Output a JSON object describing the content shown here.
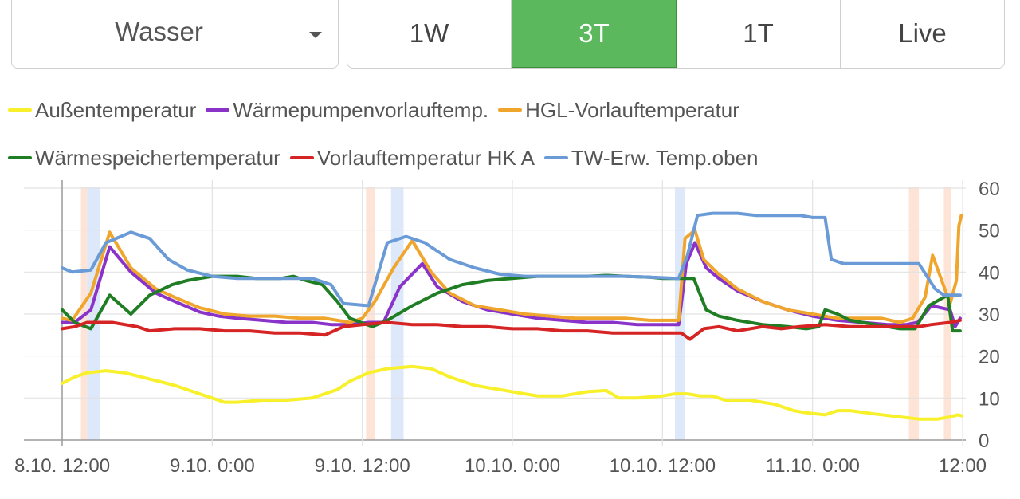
{
  "select": {
    "value": "Wasser"
  },
  "ranges": [
    {
      "label": "1W",
      "active": false
    },
    {
      "label": "3T",
      "active": true
    },
    {
      "label": "1T",
      "active": false
    },
    {
      "label": "Live",
      "active": false
    }
  ],
  "chart_data": {
    "type": "line",
    "title": "",
    "xlabel": "",
    "ylabel": "",
    "grid": true,
    "legend": "top",
    "ylim": [
      0,
      60
    ],
    "yticks": [
      "0",
      "10",
      "20",
      "30",
      "40",
      "50",
      "60"
    ],
    "xticks": [
      {
        "t": 0,
        "label": "8.10. 12:00"
      },
      {
        "t": 12,
        "label": "9.10. 0:00"
      },
      {
        "t": 24,
        "label": "9.10. 12:00"
      },
      {
        "t": 36,
        "label": "10.10. 0:00"
      },
      {
        "t": 48,
        "label": "10.10. 12:00"
      },
      {
        "t": 60,
        "label": "11.10. 0:00"
      },
      {
        "t": 72,
        "label": "12:00"
      }
    ],
    "bands": [
      {
        "from": 1.5,
        "to": 2.0,
        "color": "#fde4d6"
      },
      {
        "from": 2.0,
        "to": 3.0,
        "color": "#dde8fa"
      },
      {
        "from": 24.3,
        "to": 25.0,
        "color": "#fde4d6"
      },
      {
        "from": 26.3,
        "to": 27.3,
        "color": "#dde8fa"
      },
      {
        "from": 49.0,
        "to": 49.8,
        "color": "#dde8fa"
      },
      {
        "from": 67.7,
        "to": 68.5,
        "color": "#fde4d6"
      },
      {
        "from": 70.5,
        "to": 71.1,
        "color": "#fde4d6"
      }
    ],
    "series": [
      {
        "name": "Außentemperatur",
        "color": "#f8f02a",
        "points": [
          [
            0,
            13.5
          ],
          [
            1,
            15
          ],
          [
            2,
            16
          ],
          [
            3.5,
            16.5
          ],
          [
            5,
            16
          ],
          [
            7,
            14.5
          ],
          [
            9,
            13
          ],
          [
            11,
            11
          ],
          [
            13,
            9
          ],
          [
            14,
            9
          ],
          [
            16,
            9.5
          ],
          [
            18,
            9.5
          ],
          [
            20,
            10
          ],
          [
            22,
            12
          ],
          [
            23,
            14
          ],
          [
            24.5,
            16
          ],
          [
            26,
            17
          ],
          [
            28,
            17.5
          ],
          [
            29.5,
            17
          ],
          [
            31,
            15
          ],
          [
            33,
            13
          ],
          [
            35,
            12
          ],
          [
            37,
            11
          ],
          [
            38,
            10.5
          ],
          [
            40,
            10.5
          ],
          [
            42,
            11.5
          ],
          [
            43.5,
            11.8
          ],
          [
            44.5,
            10
          ],
          [
            46,
            10
          ],
          [
            48,
            10.5
          ],
          [
            49,
            11
          ],
          [
            50,
            11
          ],
          [
            51,
            10.5
          ],
          [
            52,
            10.5
          ],
          [
            53,
            9.5
          ],
          [
            55,
            9.5
          ],
          [
            57,
            8.5
          ],
          [
            58.5,
            7
          ],
          [
            59.5,
            6.5
          ],
          [
            61,
            6
          ],
          [
            62,
            7
          ],
          [
            63,
            7
          ],
          [
            65,
            6.2
          ],
          [
            67,
            5.5
          ],
          [
            68.5,
            5
          ],
          [
            70,
            5
          ],
          [
            71,
            5.5
          ],
          [
            71.6,
            6
          ],
          [
            71.9,
            5.8
          ]
        ]
      },
      {
        "name": "Wärmepumpenvorlauftemp.",
        "color": "#8a33c8",
        "points": [
          [
            0,
            28
          ],
          [
            1,
            28
          ],
          [
            2.3,
            31
          ],
          [
            3.8,
            46
          ],
          [
            5.5,
            40
          ],
          [
            7.5,
            35
          ],
          [
            9,
            33
          ],
          [
            11,
            30.5
          ],
          [
            12.5,
            29.5
          ],
          [
            14,
            29
          ],
          [
            16,
            28.5
          ],
          [
            18,
            28
          ],
          [
            20,
            28
          ],
          [
            21.5,
            27.5
          ],
          [
            23,
            27.5
          ],
          [
            24.5,
            28
          ],
          [
            25.7,
            28
          ],
          [
            27,
            36.5
          ],
          [
            28.8,
            42
          ],
          [
            30,
            36.5
          ],
          [
            32,
            33
          ],
          [
            34,
            31
          ],
          [
            36,
            30
          ],
          [
            38,
            29
          ],
          [
            40,
            28.5
          ],
          [
            42,
            28
          ],
          [
            44,
            28
          ],
          [
            46,
            27.5
          ],
          [
            48,
            27.5
          ],
          [
            49.3,
            27.5
          ],
          [
            49.9,
            42
          ],
          [
            50.6,
            47
          ],
          [
            51.5,
            41
          ],
          [
            52.5,
            38.5
          ],
          [
            54,
            35.5
          ],
          [
            56,
            33
          ],
          [
            58,
            31
          ],
          [
            60,
            29.5
          ],
          [
            62,
            28.5
          ],
          [
            64,
            28
          ],
          [
            66,
            27.5
          ],
          [
            67.5,
            27.5
          ],
          [
            68.4,
            28
          ],
          [
            69.5,
            32
          ],
          [
            71,
            31
          ],
          [
            71.4,
            27
          ],
          [
            71.8,
            29
          ]
        ]
      },
      {
        "name": "HGL-Vorlauftemperatur",
        "color": "#f0a52c",
        "points": [
          [
            0,
            29
          ],
          [
            0.8,
            28.5
          ],
          [
            2.3,
            35
          ],
          [
            3.8,
            49.5
          ],
          [
            5.5,
            41
          ],
          [
            7.5,
            36
          ],
          [
            9,
            34
          ],
          [
            11,
            31.5
          ],
          [
            13,
            30
          ],
          [
            15,
            29.5
          ],
          [
            17,
            29.5
          ],
          [
            19,
            29
          ],
          [
            21,
            29
          ],
          [
            22,
            28.5
          ],
          [
            23,
            28
          ],
          [
            24,
            29
          ],
          [
            25,
            33
          ],
          [
            26.5,
            41
          ],
          [
            28,
            47.5
          ],
          [
            29.5,
            40
          ],
          [
            31,
            35
          ],
          [
            33,
            32
          ],
          [
            35,
            31
          ],
          [
            37,
            30
          ],
          [
            39,
            29.5
          ],
          [
            41,
            29
          ],
          [
            43,
            29
          ],
          [
            45,
            29
          ],
          [
            47,
            28.5
          ],
          [
            49.3,
            28.5
          ],
          [
            49.8,
            48
          ],
          [
            50.6,
            50
          ],
          [
            51.3,
            43
          ],
          [
            52.5,
            39.5
          ],
          [
            54,
            36
          ],
          [
            56,
            33
          ],
          [
            58,
            31
          ],
          [
            60,
            30
          ],
          [
            62,
            29
          ],
          [
            64,
            29
          ],
          [
            65.5,
            29
          ],
          [
            67,
            28
          ],
          [
            68,
            29
          ],
          [
            69,
            34
          ],
          [
            69.6,
            44
          ],
          [
            71,
            32.5
          ],
          [
            71.5,
            38
          ],
          [
            71.7,
            51
          ],
          [
            71.9,
            53.5
          ]
        ]
      },
      {
        "name": "Wärmespeichertemperatur",
        "color": "#1f7d24",
        "points": [
          [
            0,
            31
          ],
          [
            1,
            28
          ],
          [
            2.3,
            26.5
          ],
          [
            3.8,
            34.5
          ],
          [
            5.5,
            30
          ],
          [
            7,
            34.5
          ],
          [
            8.8,
            37
          ],
          [
            10,
            38
          ],
          [
            12,
            39
          ],
          [
            14,
            39
          ],
          [
            15.5,
            38.5
          ],
          [
            17.5,
            38.5
          ],
          [
            18.5,
            39
          ],
          [
            19.5,
            38
          ],
          [
            20.8,
            37
          ],
          [
            22,
            33
          ],
          [
            23,
            29
          ],
          [
            24.8,
            27
          ],
          [
            26,
            28.5
          ],
          [
            28,
            32
          ],
          [
            30,
            35
          ],
          [
            32,
            37
          ],
          [
            34,
            38
          ],
          [
            36,
            38.5
          ],
          [
            38,
            39
          ],
          [
            40,
            39
          ],
          [
            42,
            39
          ],
          [
            43.5,
            39.2
          ],
          [
            45,
            39
          ],
          [
            47,
            38.8
          ],
          [
            48,
            38.5
          ],
          [
            49.5,
            38.5
          ],
          [
            50.5,
            38.5
          ],
          [
            51.5,
            31
          ],
          [
            52.5,
            29.5
          ],
          [
            54,
            28.5
          ],
          [
            56,
            27.5
          ],
          [
            58,
            27
          ],
          [
            59.5,
            26.5
          ],
          [
            60.5,
            27
          ],
          [
            61,
            31
          ],
          [
            62,
            30
          ],
          [
            63,
            28.5
          ],
          [
            65,
            27.5
          ],
          [
            67,
            26.5
          ],
          [
            68.2,
            26.5
          ],
          [
            69.3,
            32
          ],
          [
            70.8,
            34.5
          ],
          [
            71.2,
            26
          ],
          [
            71.8,
            26
          ]
        ]
      },
      {
        "name": "Vorlauftemperatur HK A",
        "color": "#d62424",
        "points": [
          [
            0,
            26.5
          ],
          [
            1,
            27
          ],
          [
            2,
            28
          ],
          [
            4,
            28
          ],
          [
            6,
            27
          ],
          [
            7,
            26
          ],
          [
            9,
            26.5
          ],
          [
            11,
            26.5
          ],
          [
            13,
            26
          ],
          [
            15,
            26
          ],
          [
            17,
            25.5
          ],
          [
            19,
            25.5
          ],
          [
            21,
            25
          ],
          [
            22.5,
            27
          ],
          [
            24,
            27.5
          ],
          [
            26,
            28
          ],
          [
            28,
            27.5
          ],
          [
            30,
            27.5
          ],
          [
            32,
            27
          ],
          [
            34,
            27
          ],
          [
            36,
            26.5
          ],
          [
            38,
            26.5
          ],
          [
            40,
            26
          ],
          [
            42,
            26
          ],
          [
            44,
            25.5
          ],
          [
            46,
            25.5
          ],
          [
            48,
            25.5
          ],
          [
            49.5,
            25.5
          ],
          [
            50.2,
            24
          ],
          [
            51.3,
            26.5
          ],
          [
            52.5,
            27
          ],
          [
            54,
            26
          ],
          [
            56,
            27
          ],
          [
            57.5,
            26.5
          ],
          [
            59,
            27
          ],
          [
            61,
            27.5
          ],
          [
            63,
            27
          ],
          [
            65,
            27
          ],
          [
            67,
            27
          ],
          [
            68.5,
            27
          ],
          [
            69.5,
            27.5
          ],
          [
            71,
            28
          ],
          [
            71.8,
            28.5
          ]
        ]
      },
      {
        "name": "TW-Erw. Temp.oben",
        "color": "#6a9bd7",
        "points": [
          [
            0,
            41
          ],
          [
            0.8,
            40
          ],
          [
            2.3,
            40.5
          ],
          [
            3.5,
            47
          ],
          [
            5.5,
            49.5
          ],
          [
            7,
            48
          ],
          [
            8.5,
            43
          ],
          [
            10,
            40.5
          ],
          [
            12,
            39
          ],
          [
            14,
            38.5
          ],
          [
            16,
            38.5
          ],
          [
            18,
            38.5
          ],
          [
            20,
            38.5
          ],
          [
            21.5,
            37
          ],
          [
            22.5,
            32.5
          ],
          [
            24.5,
            32
          ],
          [
            25.5,
            42
          ],
          [
            26,
            47
          ],
          [
            27.5,
            48.5
          ],
          [
            29,
            47
          ],
          [
            31,
            43
          ],
          [
            33,
            41
          ],
          [
            35,
            39.5
          ],
          [
            37,
            39
          ],
          [
            39,
            39
          ],
          [
            41,
            39
          ],
          [
            43,
            39
          ],
          [
            45,
            39
          ],
          [
            47,
            38.8
          ],
          [
            49.3,
            38.5
          ],
          [
            50,
            44
          ],
          [
            50.8,
            53.5
          ],
          [
            52,
            54
          ],
          [
            54,
            54
          ],
          [
            55.5,
            53.5
          ],
          [
            57,
            53.5
          ],
          [
            59,
            53.5
          ],
          [
            60,
            53
          ],
          [
            61,
            53
          ],
          [
            61.5,
            43
          ],
          [
            62.5,
            42
          ],
          [
            64,
            42
          ],
          [
            66,
            42
          ],
          [
            68,
            42
          ],
          [
            68.5,
            42
          ],
          [
            69.8,
            36
          ],
          [
            70.5,
            34.5
          ],
          [
            71,
            34.5
          ],
          [
            71.8,
            34.5
          ]
        ]
      }
    ]
  }
}
